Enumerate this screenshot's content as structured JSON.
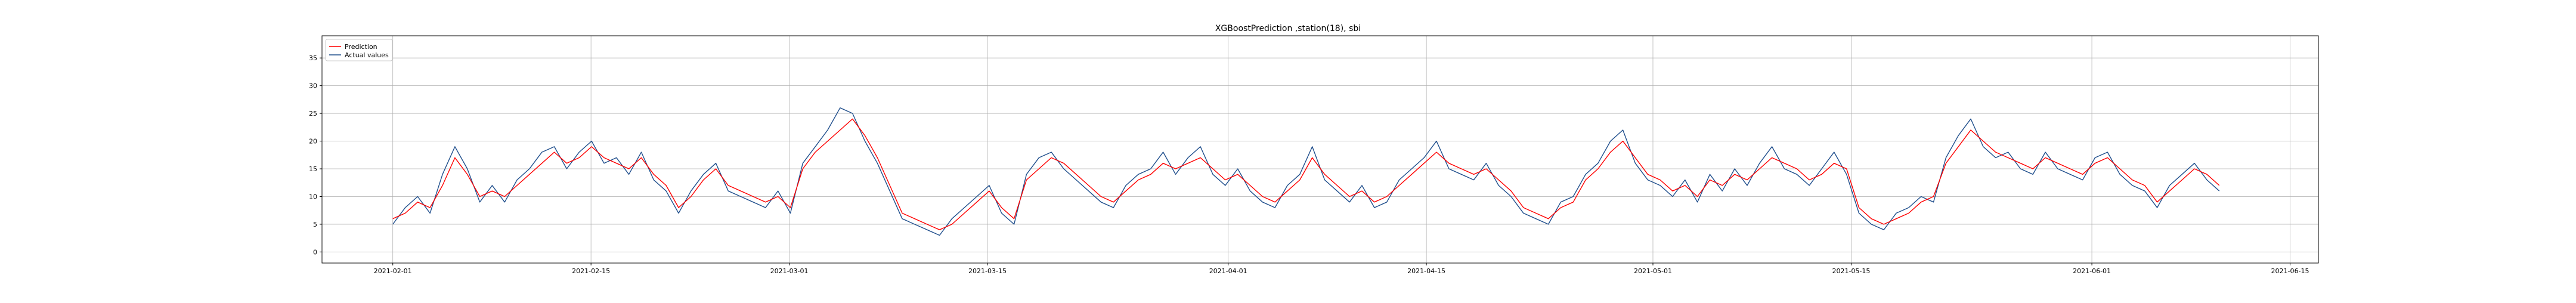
{
  "chart_data": {
    "type": "line",
    "title": "XGBoostPrediction ,station(18), sbi",
    "xlabel": "",
    "ylabel": "",
    "x_range": [
      "2021-01-27",
      "2021-06-17"
    ],
    "data_range": [
      "2021-02-01",
      "2021-06-10"
    ],
    "ylim": [
      -2,
      39
    ],
    "y_ticks": [
      0,
      5,
      10,
      15,
      20,
      25,
      30,
      35
    ],
    "x_ticks": [
      "2021-02-01",
      "2021-02-15",
      "2021-03-01",
      "2021-03-15",
      "2021-04-01",
      "2021-04-15",
      "2021-05-01",
      "2021-05-15",
      "2021-06-01",
      "2021-06-15"
    ],
    "grid": true,
    "legend_position": "upper-left",
    "series": [
      {
        "name": "Prediction",
        "color": "#ff0000",
        "values": [
          6,
          7,
          9,
          8,
          12,
          17,
          14,
          10,
          11,
          10,
          12,
          14,
          16,
          18,
          16,
          17,
          19,
          17,
          16,
          15,
          17,
          14,
          12,
          8,
          10,
          13,
          15,
          12,
          11,
          10,
          9,
          10,
          8,
          15,
          18,
          20,
          22,
          24,
          21,
          17,
          12,
          7,
          6,
          5,
          4,
          5,
          7,
          9,
          11,
          8,
          6,
          13,
          15,
          17,
          16,
          14,
          12,
          10,
          9,
          11,
          13,
          14,
          16,
          15,
          16,
          17,
          15,
          13,
          14,
          12,
          10,
          9,
          11,
          13,
          17,
          14,
          12,
          10,
          11,
          9,
          10,
          12,
          14,
          16,
          18,
          16,
          15,
          14,
          15,
          13,
          11,
          8,
          7,
          6,
          8,
          9,
          13,
          15,
          18,
          20,
          17,
          14,
          13,
          11,
          12,
          10,
          13,
          12,
          14,
          13,
          15,
          17,
          16,
          15,
          13,
          14,
          16,
          15,
          8,
          6,
          5,
          6,
          7,
          9,
          10,
          16,
          19,
          22,
          20,
          18,
          17,
          16,
          15,
          17,
          16,
          15,
          14,
          16,
          17,
          15,
          13,
          12,
          9,
          11,
          13,
          15,
          14,
          12
        ]
      },
      {
        "name": "Actual values",
        "color": "#1f4e8c",
        "values": [
          5,
          8,
          10,
          7,
          14,
          19,
          15,
          9,
          12,
          9,
          13,
          15,
          18,
          19,
          15,
          18,
          20,
          16,
          17,
          14,
          18,
          13,
          11,
          7,
          11,
          14,
          16,
          11,
          10,
          9,
          8,
          11,
          7,
          16,
          19,
          22,
          26,
          25,
          20,
          16,
          11,
          6,
          5,
          4,
          3,
          6,
          8,
          10,
          12,
          7,
          5,
          14,
          17,
          18,
          15,
          13,
          11,
          9,
          8,
          12,
          14,
          15,
          18,
          14,
          17,
          19,
          14,
          12,
          15,
          11,
          9,
          8,
          12,
          14,
          19,
          13,
          11,
          9,
          12,
          8,
          9,
          13,
          15,
          17,
          20,
          15,
          14,
          13,
          16,
          12,
          10,
          7,
          6,
          5,
          9,
          10,
          14,
          16,
          20,
          22,
          16,
          13,
          12,
          10,
          13,
          9,
          14,
          11,
          15,
          12,
          16,
          19,
          15,
          14,
          12,
          15,
          18,
          14,
          7,
          5,
          4,
          7,
          8,
          10,
          9,
          17,
          21,
          24,
          19,
          17,
          18,
          15,
          14,
          18,
          15,
          14,
          13,
          17,
          18,
          14,
          12,
          11,
          8,
          12,
          14,
          16,
          13,
          11
        ]
      }
    ]
  }
}
